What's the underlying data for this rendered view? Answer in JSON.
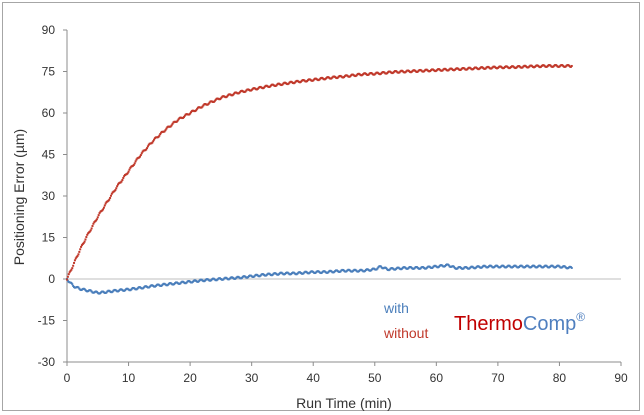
{
  "chart_data": {
    "type": "scatter",
    "title": "",
    "xlabel": "Run Time (min)",
    "ylabel": "Positioning Error (µm)",
    "xlim": [
      0,
      90
    ],
    "ylim": [
      -30,
      90
    ],
    "x_ticks": [
      "0",
      "10",
      "20",
      "30",
      "40",
      "50",
      "60",
      "70",
      "80",
      "90"
    ],
    "y_ticks": [
      "90",
      "75",
      "60",
      "45",
      "30",
      "15",
      "0",
      "-15",
      "-30"
    ],
    "grid": false,
    "legend_position": "bottom-right",
    "series": [
      {
        "name": "with",
        "color": "#4a7ebb",
        "x": [
          0,
          1,
          2,
          3,
          4,
          5,
          6,
          7,
          8,
          10,
          12,
          14,
          16,
          18,
          20,
          22,
          25,
          28,
          30,
          32,
          35,
          37,
          40,
          42,
          45,
          48,
          50,
          51,
          52,
          55,
          58,
          60,
          62,
          63,
          65,
          68,
          70,
          72,
          75,
          78,
          80,
          82
        ],
        "y": [
          0,
          -2.5,
          -3.5,
          -4,
          -4.5,
          -5,
          -4.8,
          -4.5,
          -4.2,
          -3.8,
          -3.2,
          -2.5,
          -2,
          -1.5,
          -1,
          -0.5,
          0,
          0.5,
          1,
          1.5,
          2,
          2,
          2.5,
          2.5,
          3,
          3,
          3.5,
          4.5,
          3.5,
          4,
          4,
          4.5,
          5,
          4,
          4,
          4.5,
          4.5,
          4.5,
          4.5,
          4.5,
          4.5,
          4
        ]
      },
      {
        "name": "without",
        "color": "#c0392b",
        "x": [
          0,
          1,
          2,
          3,
          4,
          5,
          6,
          8,
          10,
          12,
          14,
          16,
          18,
          20,
          22,
          25,
          28,
          30,
          33,
          35,
          38,
          40,
          43,
          45,
          48,
          50,
          53,
          55,
          58,
          60,
          63,
          65,
          68,
          70,
          73,
          75,
          78,
          80,
          82
        ],
        "y": [
          0,
          5,
          10,
          14.5,
          18.5,
          22.5,
          26,
          33,
          39,
          45,
          50,
          54,
          57.5,
          60,
          62.5,
          65.5,
          67.5,
          68.5,
          69.8,
          70.5,
          71.5,
          72,
          72.8,
          73.2,
          74,
          74.2,
          74.8,
          75,
          75.3,
          75.5,
          75.8,
          76,
          76.3,
          76.5,
          76.6,
          76.8,
          77,
          77,
          77
        ]
      }
    ],
    "legend": {
      "with_label": "with",
      "without_label": "without"
    },
    "brand": {
      "part1": "Thermo",
      "part2": "Comp",
      "mark": "®"
    }
  }
}
